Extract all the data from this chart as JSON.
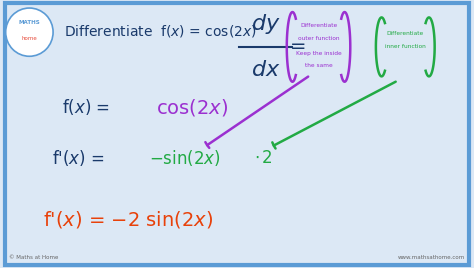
{
  "bg_color": "#dce8f5",
  "border_color": "#5b9bd5",
  "title_color": "#1a3a6b",
  "title_fontsize": 10,
  "line1_left_color": "#1a3a6b",
  "line1_right_color": "#9b30d0",
  "line2_left_color": "#1a3a6b",
  "line2_mid_color": "#22aa44",
  "line3_color": "#e8410a",
  "dy_dx_color": "#1a3a6b",
  "purple_bracket_color": "#9b30d0",
  "green_bracket_color": "#22aa44",
  "purple_text1": "Differentiate",
  "purple_text2": "outer function",
  "purple_text3": "Keep the inside",
  "purple_text4": "the same",
  "green_text1": "Differentiate",
  "green_text2": "inner function",
  "arrow_purple_color": "#9b30d0",
  "arrow_green_color": "#22aa44",
  "copyright_text": "© Maths at Home",
  "website_text": "www.mathsathome.com",
  "small_text_color": "#666666"
}
